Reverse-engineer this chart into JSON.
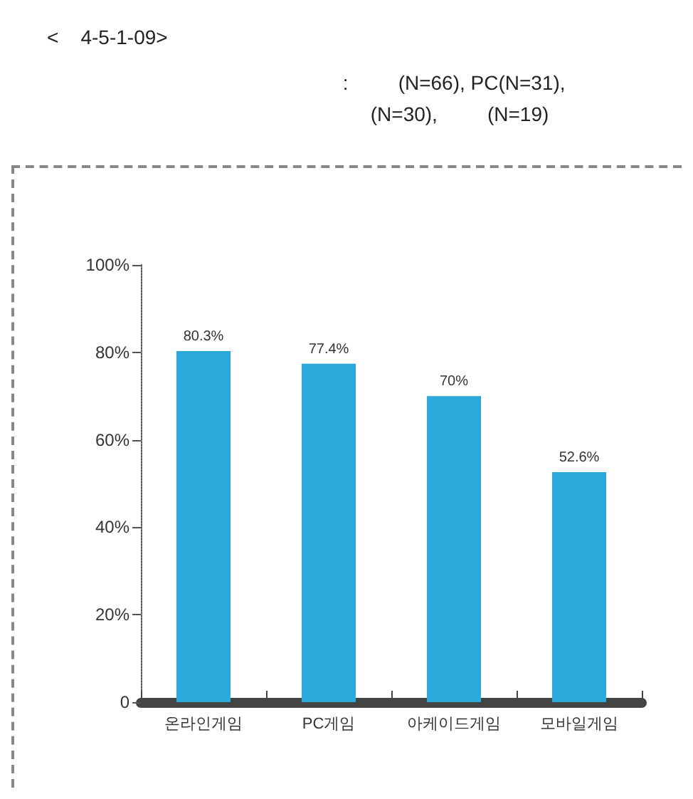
{
  "chart_data": {
    "type": "bar",
    "title": "<    4-5-1-09>",
    "subtitle": ":         (N=66), PC(N=31),  (N=30),         (N=19)",
    "categories": [
      "온라인게임",
      "PC게임",
      "아케이드게임",
      "모바일게임"
    ],
    "values": [
      80.3,
      77.4,
      70,
      52.6
    ],
    "color": "#2aaad8",
    "value_labels": [
      "80.3%",
      "77.4%",
      "70%",
      "52.6%"
    ],
    "ylim": [
      0,
      100
    ],
    "yticks": [
      {
        "value": 0,
        "label": "0"
      },
      {
        "value": 20,
        "label": "20%"
      },
      {
        "value": 40,
        "label": "40%"
      },
      {
        "value": 60,
        "label": "60%"
      },
      {
        "value": 80,
        "label": "80%"
      },
      {
        "value": 100,
        "label": "100%"
      }
    ],
    "grid": false
  }
}
